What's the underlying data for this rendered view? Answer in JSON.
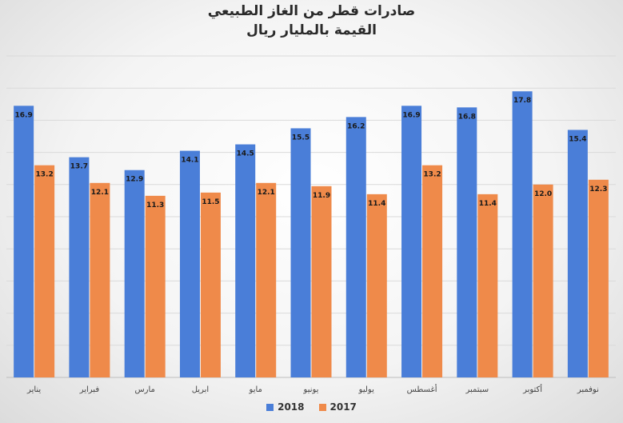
{
  "chart_data": {
    "type": "bar",
    "title": "صادرات قطر من الغاز الطبيعي",
    "subtitle": "القيمة بالمليار ريال",
    "categories": [
      "يناير",
      "فبراير",
      "مارس",
      "ابريل",
      "مايو",
      "يونيو",
      "يوليو",
      "أغسطس",
      "سبتمبر",
      "أكتوبر",
      "نوفمبر"
    ],
    "series": [
      {
        "name": "2018",
        "color": "#4a7ed8",
        "values": [
          16.9,
          13.7,
          12.9,
          14.1,
          14.5,
          15.5,
          16.2,
          16.9,
          16.8,
          17.8,
          15.4
        ]
      },
      {
        "name": "2017",
        "color": "#ef8a4a",
        "values": [
          13.2,
          12.1,
          11.3,
          11.5,
          12.1,
          11.9,
          11.4,
          13.2,
          11.4,
          12.0,
          12.3
        ]
      }
    ],
    "ylim": [
      0,
      20
    ],
    "grid": true,
    "legend": "bottom",
    "data_labels": true
  }
}
